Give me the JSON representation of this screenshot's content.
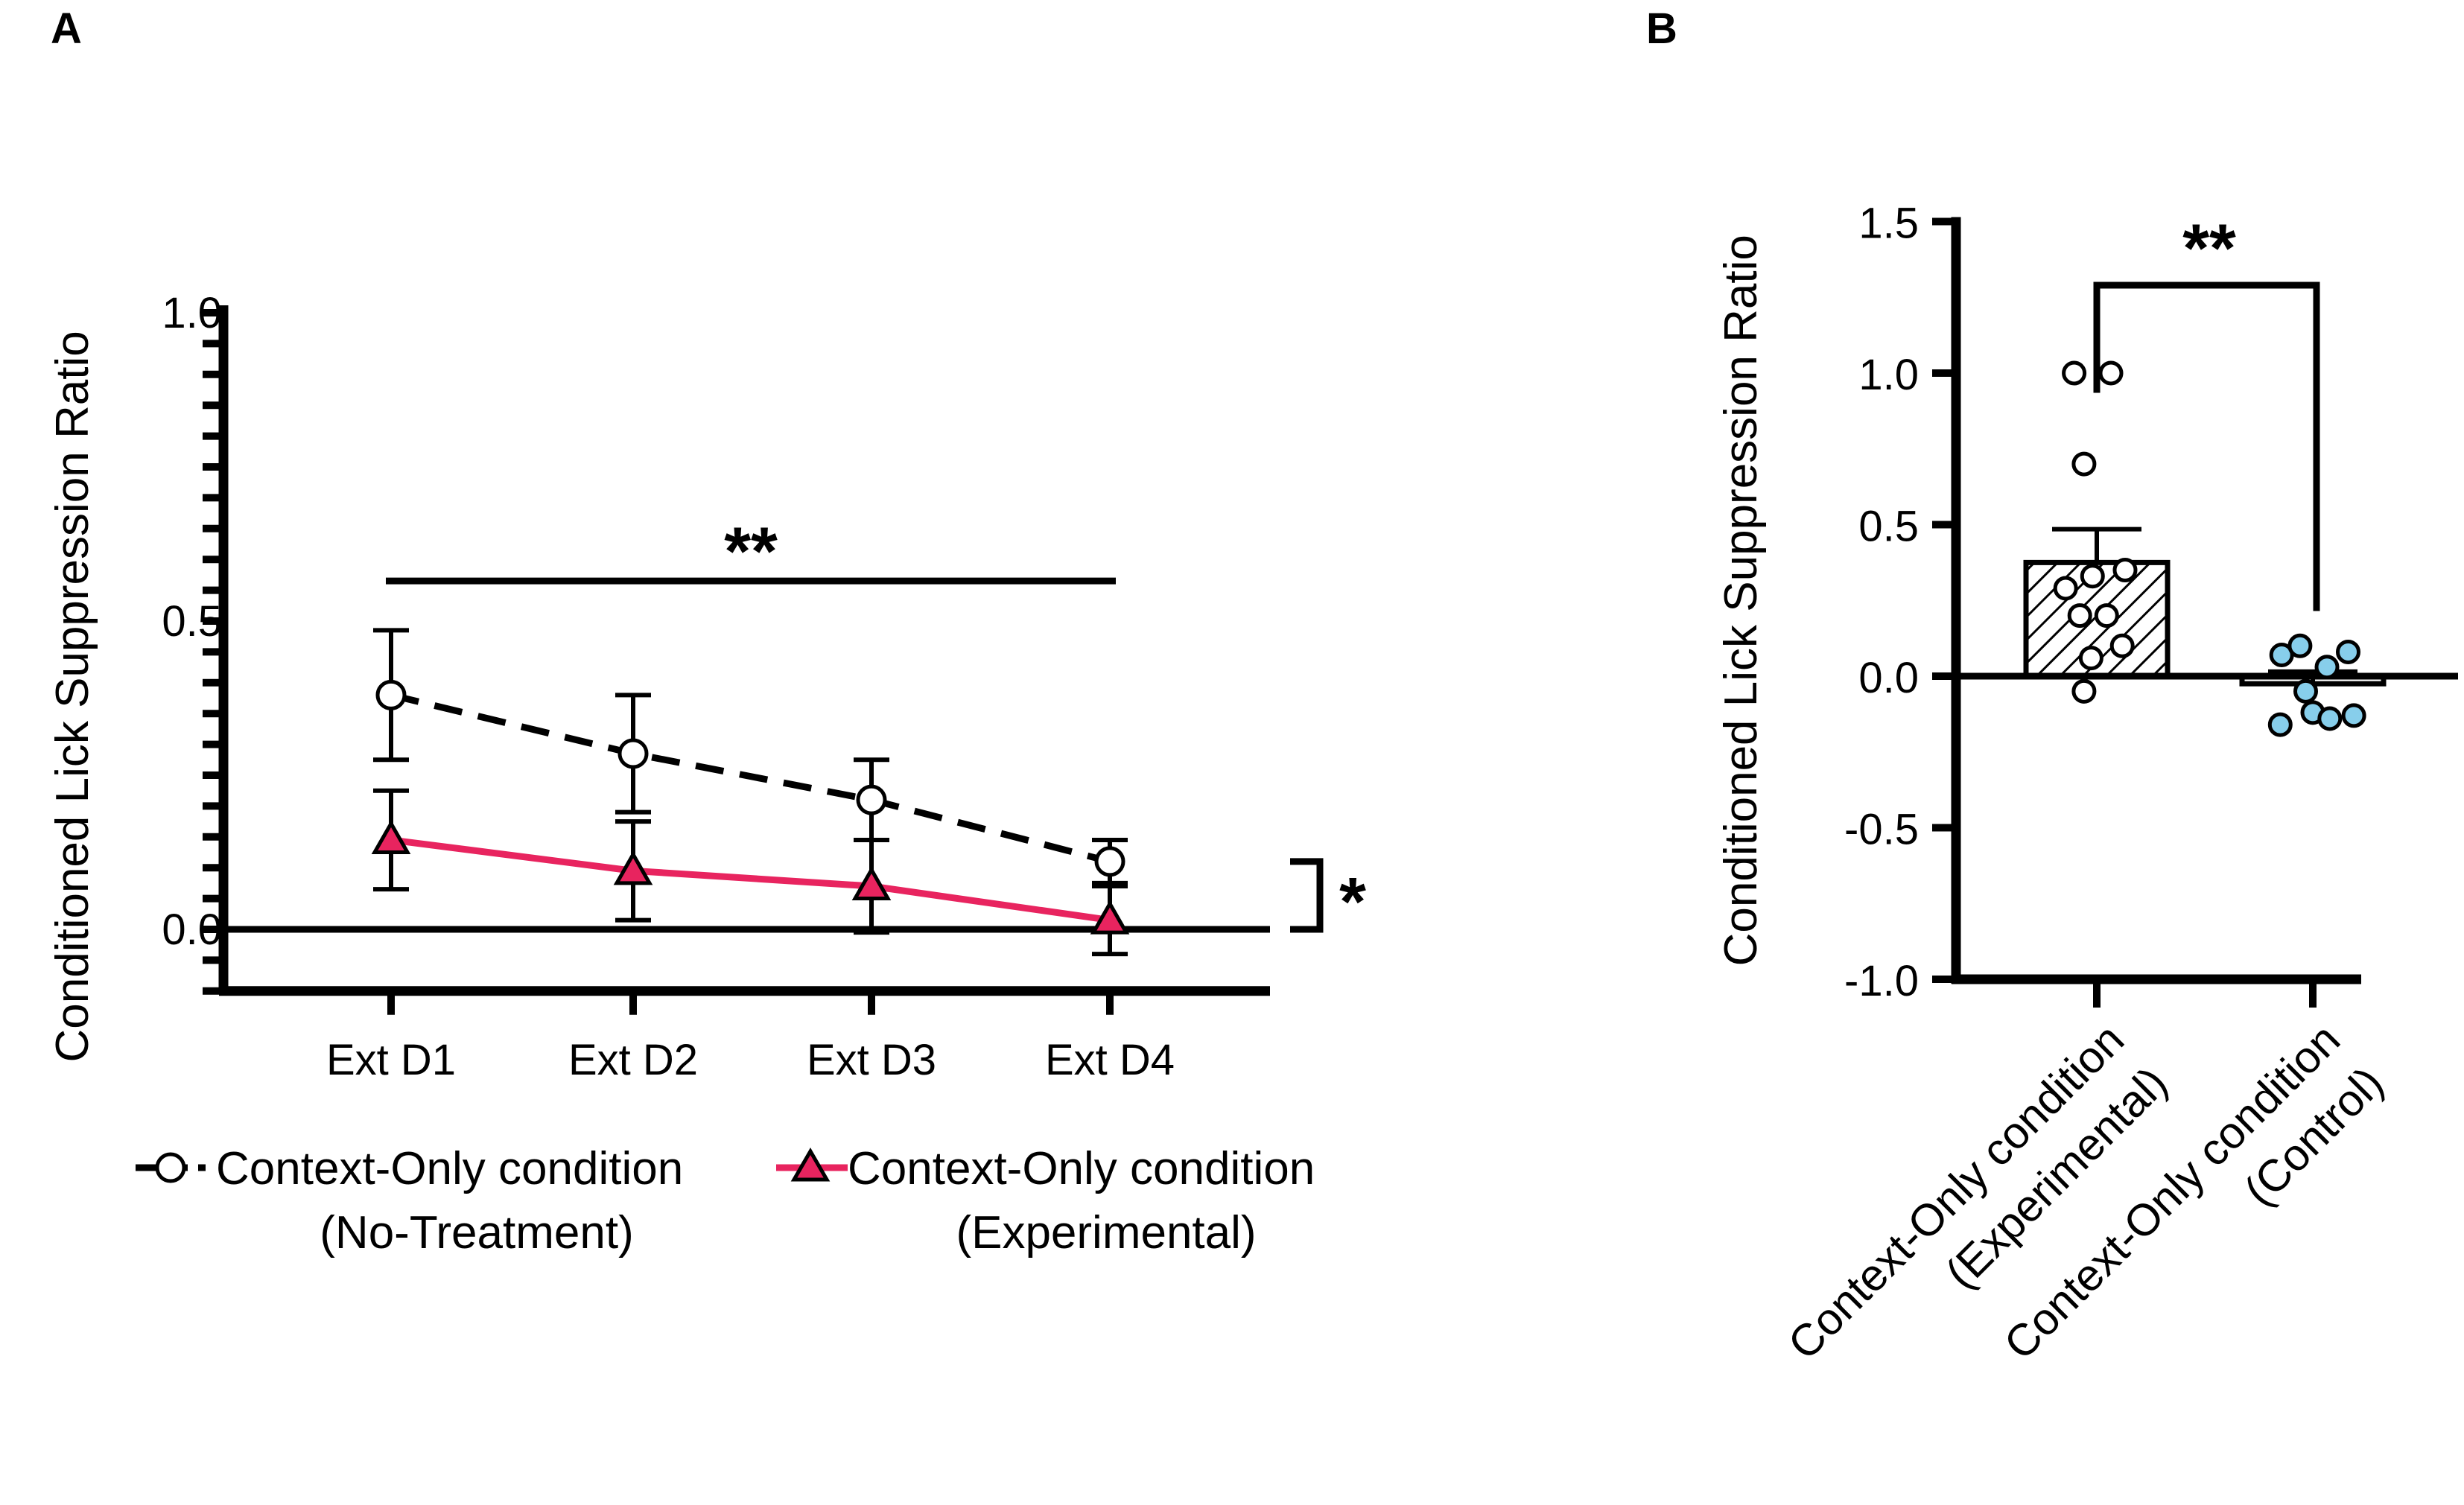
{
  "panels": {
    "a": {
      "letter": "A"
    },
    "b": {
      "letter": "B"
    }
  },
  "chart_data": [
    {
      "type": "line",
      "panel": "A",
      "categories": [
        "Ext D1",
        "Ext D2",
        "Ext D3",
        "Ext D4"
      ],
      "ylabel": "Conditioned Lick Suppression Ratio",
      "ylim": [
        -0.1,
        1.0
      ],
      "yticks": [
        {
          "value": 0.0,
          "label": "0.0"
        },
        {
          "value": 0.5,
          "label": "0.5"
        },
        {
          "value": 1.0,
          "label": "1.0"
        }
      ],
      "minor_tick_step": 0.05,
      "series": [
        {
          "name": "Context-Only condition (No-Treatment)",
          "legend_line1": "Context-Only condition",
          "legend_line2": "(No-Treatment)",
          "values": [
            0.38,
            0.285,
            0.21,
            0.11
          ],
          "sem": [
            0.105,
            0.095,
            0.065,
            0.035
          ],
          "color": "#000000",
          "marker": "open-circle",
          "linestyle": "dashed"
        },
        {
          "name": "Context-Only condition (Experimental)",
          "legend_line1": "Context-Only condition",
          "legend_line2": "(Experimental)",
          "values": [
            0.145,
            0.095,
            0.07,
            0.015
          ],
          "sem": [
            0.08,
            0.08,
            0.075,
            0.055
          ],
          "color": "#e8245f",
          "marker": "filled-triangle",
          "linestyle": "solid"
        }
      ],
      "annotations": [
        {
          "text": "**",
          "type": "bracket-over-days",
          "from": "Ext D1",
          "to": "Ext D4",
          "at": 0.565
        },
        {
          "text": "*",
          "type": "bracket-between-series",
          "from": 0.0,
          "to": 0.11
        }
      ]
    },
    {
      "type": "bar",
      "panel": "B",
      "categories": [
        "Context-Only condition (Experimental)",
        "Context-Only condition (Control)"
      ],
      "category_lines": [
        [
          "Context-Only condition",
          "(Experimental)"
        ],
        [
          "Context-Only condition",
          "(Control)"
        ]
      ],
      "ylabel": "Conditioned Lick Suppression Ratio",
      "ylim": [
        -1.0,
        1.5
      ],
      "yticks": [
        {
          "value": 1.5,
          "label": "1.5"
        },
        {
          "value": 1.0,
          "label": "1.0"
        },
        {
          "value": 0.5,
          "label": "0.5"
        },
        {
          "value": 0.0,
          "label": "0.0"
        },
        {
          "value": -0.5,
          "label": "-0.5"
        },
        {
          "value": -1.0,
          "label": "-1.0"
        }
      ],
      "values": [
        0.375,
        -0.025
      ],
      "sem": [
        0.11,
        0.04
      ],
      "bar_fill": [
        "hatched",
        "none"
      ],
      "points": [
        [
          {
            "x": -0.16,
            "y": 1.0
          },
          {
            "x": 0.1,
            "y": 1.0
          },
          {
            "x": -0.09,
            "y": 0.7
          },
          {
            "x": -0.22,
            "y": 0.29
          },
          {
            "x": -0.03,
            "y": 0.33
          },
          {
            "x": 0.2,
            "y": 0.35
          },
          {
            "x": -0.12,
            "y": 0.2
          },
          {
            "x": 0.07,
            "y": 0.2
          },
          {
            "x": -0.04,
            "y": 0.06
          },
          {
            "x": 0.18,
            "y": 0.1
          },
          {
            "x": -0.09,
            "y": -0.05
          }
        ],
        [
          {
            "x": -0.22,
            "y": 0.07
          },
          {
            "x": -0.09,
            "y": 0.1
          },
          {
            "x": 0.1,
            "y": 0.03
          },
          {
            "x": 0.25,
            "y": 0.08
          },
          {
            "x": -0.05,
            "y": -0.05
          },
          {
            "x": -0.23,
            "y": -0.16
          },
          {
            "x": 0.0,
            "y": -0.12
          },
          {
            "x": 0.12,
            "y": -0.14
          },
          {
            "x": 0.29,
            "y": -0.13
          }
        ]
      ],
      "point_colors": [
        "#ffffff",
        "#87ceeb"
      ],
      "annotations": [
        {
          "text": "**",
          "type": "bracket-between-groups",
          "at": 1.29
        }
      ]
    }
  ]
}
